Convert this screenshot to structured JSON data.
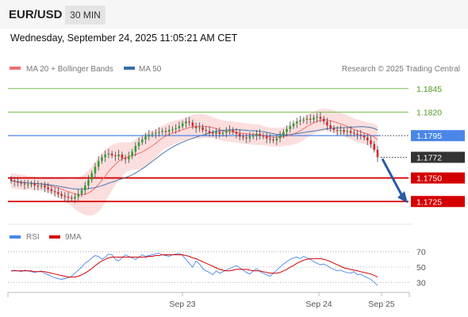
{
  "header": {
    "pair": "EUR/USD",
    "timeframe": "30 MIN"
  },
  "datetime": "Wednesday, September 24, 2025 11:05:21 AM CET",
  "legend": {
    "ma20_bb": "MA 20 + Bollinger Bands",
    "ma50": "MA 50",
    "credit": "Research © 2025 Trading Central"
  },
  "rsi_legend": {
    "rsi": "RSI",
    "ma9": "9MA"
  },
  "colors": {
    "ma20": "#f07070",
    "band": "#fbd8d8",
    "ma50": "#3a6ea8",
    "up": "#2ca02c",
    "down": "#d62728",
    "support": "#d40000",
    "resistance": "#7fc050",
    "pivot": "#4a86e8",
    "price": "#333333",
    "arrow": "#2a5aa6"
  },
  "chart_data": [
    {
      "type": "candlestick",
      "ylim": [
        1.1705,
        1.186
      ],
      "x_ticks": [
        "Sep 23",
        "Sep 24",
        "Sep 25"
      ],
      "levels": [
        {
          "label": "1.1845",
          "value": 1.1845,
          "kind": "resistance"
        },
        {
          "label": "1.1820",
          "value": 1.182,
          "kind": "resistance"
        },
        {
          "label": "1.1795",
          "value": 1.1795,
          "kind": "pivot"
        },
        {
          "label": "1.1772",
          "value": 1.1772,
          "kind": "price"
        },
        {
          "label": "1.1750",
          "value": 1.175,
          "kind": "support"
        },
        {
          "label": "1.1725",
          "value": 1.1725,
          "kind": "support"
        }
      ],
      "close_series": [
        1.1747,
        1.1746,
        1.1745,
        1.1744,
        1.1743,
        1.1743,
        1.1744,
        1.1742,
        1.1741,
        1.1742,
        1.174,
        1.1738,
        1.1736,
        1.1735,
        1.1733,
        1.1731,
        1.173,
        1.1729,
        1.1728,
        1.173,
        1.1733,
        1.1737,
        1.1742,
        1.1748,
        1.1755,
        1.1762,
        1.1768,
        1.1772,
        1.1775,
        1.1776,
        1.1774,
        1.1773,
        1.1775,
        1.1771,
        1.177,
        1.1773,
        1.1778,
        1.1784,
        1.1788,
        1.1791,
        1.1794,
        1.1796,
        1.1797,
        1.1798,
        1.1799,
        1.18,
        1.1799,
        1.1801,
        1.1802,
        1.1803,
        1.1805,
        1.1808,
        1.181,
        1.1809,
        1.1805,
        1.1803,
        1.1804,
        1.1801,
        1.18,
        1.1798,
        1.1797,
        1.1799,
        1.1797,
        1.1798,
        1.18,
        1.1801,
        1.1799,
        1.1797,
        1.1794,
        1.1793,
        1.1792,
        1.1794,
        1.1795,
        1.1797,
        1.1795,
        1.1794,
        1.1792,
        1.1791,
        1.179,
        1.1792,
        1.1795,
        1.1799,
        1.1802,
        1.1805,
        1.1808,
        1.181,
        1.1811,
        1.1812,
        1.1813,
        1.1812,
        1.1814,
        1.1815,
        1.1813,
        1.181,
        1.1806,
        1.1803,
        1.1801,
        1.18,
        1.1801,
        1.1799,
        1.18,
        1.1798,
        1.1797,
        1.1796,
        1.1795,
        1.1793,
        1.179,
        1.1786,
        1.178,
        1.1772
      ],
      "ma20_band_width": [
        0.0008,
        0.0008,
        0.0008,
        0.0008,
        0.0008,
        0.0007,
        0.0007,
        0.0007,
        0.0007,
        0.0007,
        0.0007,
        0.0008,
        0.0008,
        0.0009,
        0.001,
        0.0011,
        0.0012,
        0.0013,
        0.0014,
        0.0016,
        0.0018,
        0.002,
        0.0022,
        0.0024,
        0.0026,
        0.0028,
        0.0029,
        0.0029,
        0.0028,
        0.0026,
        0.0024,
        0.0022,
        0.002,
        0.0018,
        0.0016,
        0.0015,
        0.0015,
        0.0016,
        0.0017,
        0.0018,
        0.0018,
        0.0017,
        0.0016,
        0.0015,
        0.0014,
        0.0013,
        0.0013,
        0.0013,
        0.0013,
        0.0012,
        0.0012,
        0.0012,
        0.0012,
        0.0012,
        0.0013,
        0.0013,
        0.0013,
        0.0013,
        0.0012,
        0.0012,
        0.0011,
        0.0011,
        0.0011,
        0.0011,
        0.0011,
        0.0011,
        0.0011,
        0.0011,
        0.0011,
        0.0011,
        0.0011,
        0.0011,
        0.0011,
        0.0011,
        0.0011,
        0.001,
        0.001,
        0.001,
        0.001,
        0.001,
        0.001,
        0.001,
        0.001,
        0.0011,
        0.0011,
        0.0012,
        0.0012,
        0.0012,
        0.0012,
        0.0012,
        0.0012,
        0.0012,
        0.0012,
        0.0012,
        0.0012,
        0.0012,
        0.0012,
        0.0012,
        0.0012,
        0.0012,
        0.0012,
        0.0012,
        0.0012,
        0.0012,
        0.0012,
        0.0012,
        0.0012,
        0.0013,
        0.0014,
        0.0015,
        0.0017
      ]
    },
    {
      "type": "line",
      "name": "RSI",
      "ylim": [
        20,
        80
      ],
      "y_ticks": [
        70,
        50,
        30
      ],
      "rsi_series": [
        45,
        46,
        45,
        44,
        46,
        45,
        44,
        43,
        44,
        45,
        42,
        40,
        38,
        36,
        35,
        34,
        35,
        36,
        38,
        42,
        46,
        50,
        55,
        58,
        62,
        65,
        64,
        60,
        63,
        67,
        66,
        60,
        58,
        62,
        66,
        64,
        62,
        60,
        63,
        66,
        64,
        65,
        66,
        67,
        68,
        66,
        65,
        64,
        66,
        67,
        68,
        65,
        60,
        55,
        50,
        58,
        54,
        48,
        45,
        43,
        40,
        45,
        42,
        44,
        46,
        48,
        50,
        52,
        49,
        46,
        43,
        41,
        45,
        48,
        44,
        42,
        40,
        38,
        42,
        46,
        50,
        54,
        57,
        60,
        62,
        63,
        61,
        64,
        62,
        60,
        57,
        55,
        53,
        54,
        52,
        49,
        47,
        45,
        46,
        44,
        43,
        42,
        44,
        40,
        41,
        38,
        36,
        34,
        30,
        26
      ],
      "ma9_series": [
        45,
        45,
        45,
        45,
        45,
        45,
        45,
        44,
        44,
        44,
        44,
        43,
        42,
        41,
        40,
        39,
        38,
        37,
        37,
        37,
        38,
        40,
        42,
        45,
        48,
        52,
        55,
        58,
        60,
        62,
        63,
        63,
        63,
        63,
        63,
        63,
        63,
        63,
        63,
        63,
        63,
        64,
        64,
        65,
        65,
        66,
        66,
        66,
        66,
        66,
        66,
        66,
        65,
        64,
        62,
        61,
        59,
        57,
        55,
        53,
        51,
        49,
        47,
        46,
        45,
        45,
        46,
        47,
        47,
        47,
        47,
        46,
        45,
        45,
        45,
        44,
        43,
        42,
        42,
        42,
        43,
        45,
        47,
        50,
        52,
        55,
        57,
        59,
        60,
        61,
        61,
        61,
        61,
        60,
        59,
        57,
        55,
        53,
        51,
        49,
        48,
        47,
        46,
        45,
        44,
        43,
        42,
        41,
        39,
        37
      ]
    }
  ]
}
